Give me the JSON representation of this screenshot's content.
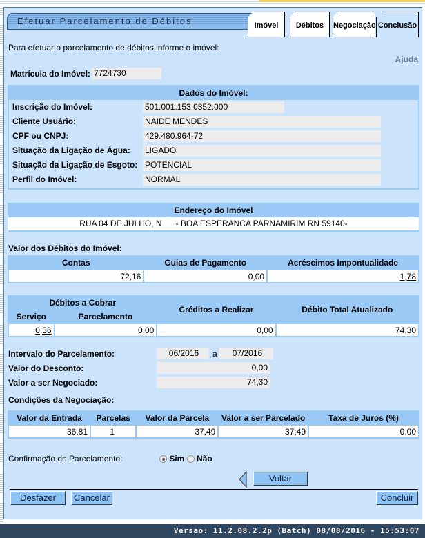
{
  "title": "Efetuar Parcelamento de Débitos",
  "tabs": [
    {
      "label": "Imóvel"
    },
    {
      "label": "Débitos"
    },
    {
      "label": "Negociação"
    },
    {
      "label": "Conclusão",
      "active": true
    }
  ],
  "intro": "Para efetuar o parcelamento de débitos informe o imóvel:",
  "help_link": "Ajuda",
  "matricula": {
    "label": "Matrícula do Imóvel:",
    "value": "7724730"
  },
  "dados": {
    "header": "Dados do Imóvel:",
    "rows": [
      {
        "label": "Inscrição do Imóvel:",
        "value": "501.001.153.0352.000"
      },
      {
        "label": "Cliente Usuário:",
        "value": "NAIDE MENDES"
      },
      {
        "label": "CPF ou CNPJ:",
        "value": "429.480.964-72"
      },
      {
        "label": "Situação da Ligação de Água:",
        "value": "LIGADO"
      },
      {
        "label": "Situação da Ligação de Esgoto:",
        "value": "POTENCIAL"
      },
      {
        "label": "Perfil do Imóvel:",
        "value": "NORMAL"
      }
    ]
  },
  "endereco": {
    "header": "Endereço do Imóvel",
    "value": "RUA 04 DE JULHO, N      - BOA ESPERANCA PARNAMIRIM RN 59140-"
  },
  "valor_debitos": {
    "label": "Valor dos Débitos do Imóvel:",
    "headers": [
      "Contas",
      "Guias de Pagamento",
      "Acréscimos Impontualidade"
    ],
    "values": [
      "72,16",
      "0,00",
      "1,78"
    ]
  },
  "debitos2": {
    "group": "Débitos a Cobrar",
    "sub": [
      "Serviço",
      "Parcelamento"
    ],
    "creditos": "Créditos a Realizar",
    "total": "Débito Total Atualizado",
    "values": [
      "0,36",
      "0,00",
      "0,00",
      "74,30"
    ]
  },
  "intervalo": {
    "label": "Intervalo do Parcelamento:",
    "from": "06/2016",
    "sep": "a",
    "to": "07/2016"
  },
  "desconto": {
    "label": "Valor do Desconto:",
    "value": "0,00"
  },
  "negociado": {
    "label": "Valor a ser Negociado:",
    "value": "74,30"
  },
  "condicoes": {
    "label": "Condições da Negociação:",
    "headers": [
      "Valor da Entrada",
      "Parcelas",
      "Valor da Parcela",
      "Valor a ser Parcelado",
      "Taxa de Juros (%)"
    ],
    "values": [
      "36,81",
      "1",
      "37,49",
      "37,49",
      "0,00"
    ]
  },
  "confirmacao": {
    "label": "Confirmação de Parcelamento:",
    "options": [
      "Sim",
      "Não"
    ],
    "selected": "Sim"
  },
  "buttons": {
    "voltar": "Voltar",
    "desfazer": "Desfazer",
    "cancelar": "Cancelar",
    "concluir": "Concluir"
  },
  "footer": "Versão: 11.2.08.2.2p (Batch) 08/08/2016 - 15:53:07"
}
